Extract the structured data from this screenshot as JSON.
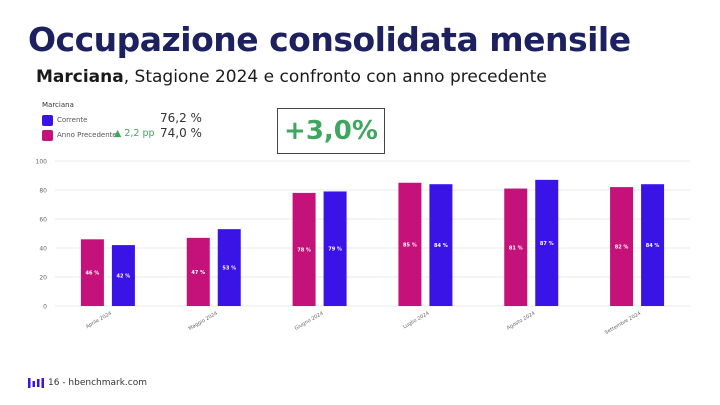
{
  "slide": {
    "title": "Occupazione consolidata mensile",
    "subtitle_bold": "Marciana",
    "subtitle_rest": ", Stagione 2024 e confronto con anno precedente",
    "highlight": "+3,0%",
    "footer": "16 - hbenchmark.com"
  },
  "legend": {
    "title": "Marciana",
    "current_label": "Corrente",
    "current_value": "76,2 %",
    "previous_label": "Anno Precedente",
    "delta": "▲ 2,2 pp",
    "previous_value": "74,0 %"
  },
  "colors": {
    "previous": "#c5117a",
    "current": "#3a14e6",
    "title": "#1e2160",
    "positive": "#3fa65f"
  },
  "chart_data": {
    "type": "bar",
    "categories": [
      "Aprile 2024",
      "Maggio 2024",
      "Giugno 2024",
      "Luglio 2024",
      "Agosto 2024",
      "Settembre 2024"
    ],
    "series": [
      {
        "name": "Anno Precedente",
        "values": [
          46,
          47,
          78,
          85,
          81,
          82
        ],
        "labels": [
          "46 %",
          "47 %",
          "78 %",
          "85 %",
          "81 %",
          "82 %"
        ]
      },
      {
        "name": "Corrente",
        "values": [
          42,
          53,
          79,
          84,
          87,
          84
        ],
        "labels": [
          "42 %",
          "53 %",
          "79 %",
          "84 %",
          "87 %",
          "84 %"
        ]
      }
    ],
    "ylim": [
      0,
      100
    ],
    "yticks": [
      0,
      20,
      40,
      60,
      80,
      100
    ],
    "grid": true,
    "legend_position": "top-left"
  }
}
